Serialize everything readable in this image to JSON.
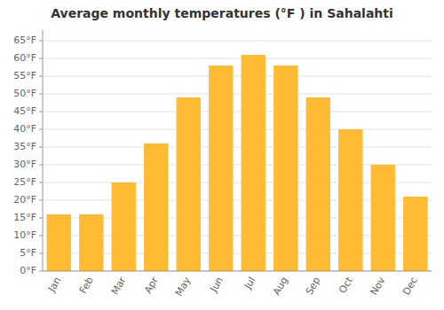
{
  "chart_data": {
    "type": "bar",
    "title": "Average monthly temperatures (°F ) in Sahalahti",
    "categories": [
      "Jan",
      "Feb",
      "Mar",
      "Apr",
      "May",
      "Jun",
      "Jul",
      "Aug",
      "Sep",
      "Oct",
      "Nov",
      "Dec"
    ],
    "values": [
      16,
      16,
      25,
      36,
      49,
      58,
      61,
      58,
      49,
      40,
      30,
      21
    ],
    "color": "#FFBB33",
    "ylim": [
      0,
      68
    ],
    "yticks": [
      {
        "value": 0,
        "label": "0°F"
      },
      {
        "value": 5,
        "label": "5°F"
      },
      {
        "value": 10,
        "label": "10°F"
      },
      {
        "value": 15,
        "label": "15°F"
      },
      {
        "value": 20,
        "label": "20°F"
      },
      {
        "value": 25,
        "label": "25°F"
      },
      {
        "value": 30,
        "label": "30°F"
      },
      {
        "value": 35,
        "label": "35°F"
      },
      {
        "value": 40,
        "label": "40°F"
      },
      {
        "value": 45,
        "label": "45°F"
      },
      {
        "value": 50,
        "label": "50°F"
      },
      {
        "value": 55,
        "label": "55°F"
      },
      {
        "value": 60,
        "label": "60°F"
      },
      {
        "value": 65,
        "label": "65°F"
      }
    ],
    "grid": true
  }
}
